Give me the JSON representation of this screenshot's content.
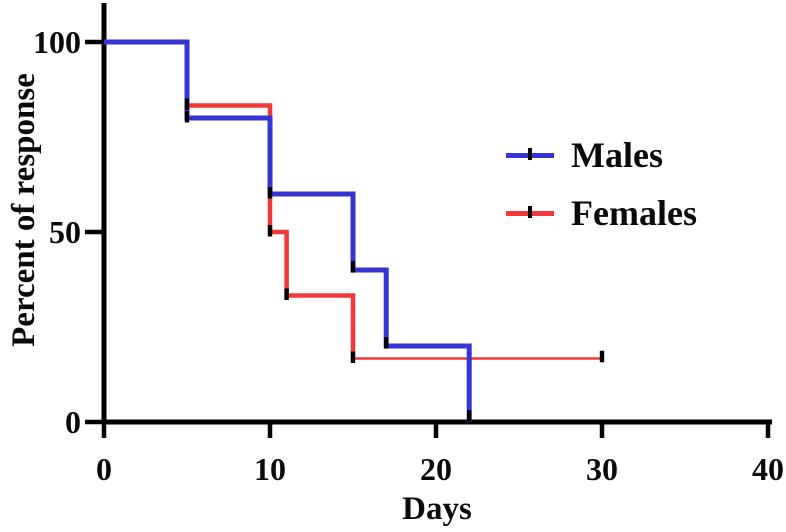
{
  "figure": {
    "background": "#ffffff",
    "text_color": "#0a0a0a",
    "axis_color": "#000000"
  },
  "chart_data": {
    "type": "line",
    "subtype": "kaplan-meier-step-survival",
    "title": "",
    "xlabel": "Days",
    "ylabel": "Percent of response",
    "xlim": [
      0,
      40
    ],
    "ylim": [
      0,
      100
    ],
    "xticks": [
      0,
      10,
      20,
      30,
      40
    ],
    "yticks": [
      0,
      50,
      100
    ],
    "grid": false,
    "legend_position": "right-center",
    "series": [
      {
        "name": "Females",
        "color": "#f23838",
        "line_width": 4.5,
        "tail_width": 2.5,
        "points": [
          [
            0,
            100
          ],
          [
            5,
            100
          ],
          [
            5,
            83.3
          ],
          [
            10,
            83.3
          ],
          [
            10,
            50
          ],
          [
            11,
            50
          ],
          [
            11,
            33.3
          ],
          [
            15,
            33.3
          ],
          [
            15,
            16.7
          ],
          [
            30,
            16.7
          ]
        ],
        "censor_ticks": [
          [
            5,
            83.3
          ],
          [
            10,
            50
          ],
          [
            11,
            33.3
          ],
          [
            15,
            16.7
          ],
          [
            30,
            16.9
          ]
        ]
      },
      {
        "name": "Males",
        "color": "#3634d2",
        "line_width": 5,
        "tail_width": 5,
        "points": [
          [
            0,
            100
          ],
          [
            5,
            100
          ],
          [
            5,
            80
          ],
          [
            10,
            80
          ],
          [
            10,
            60
          ],
          [
            15,
            60
          ],
          [
            15,
            40
          ],
          [
            17,
            40
          ],
          [
            17,
            20
          ],
          [
            22,
            20
          ],
          [
            22,
            0
          ]
        ],
        "censor_ticks": [
          [
            5,
            80
          ],
          [
            10,
            60
          ],
          [
            15,
            40.5
          ],
          [
            17,
            20.5
          ],
          [
            22,
            1.3
          ]
        ]
      }
    ],
    "legend": {
      "entries": [
        {
          "label": "Males",
          "color": "#3634d2"
        },
        {
          "label": "Females",
          "color": "#f23838"
        }
      ]
    }
  }
}
